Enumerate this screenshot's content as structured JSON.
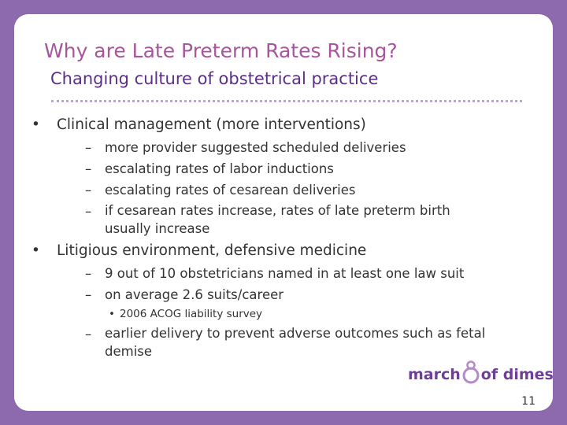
{
  "title": "Why are Late Preterm Rates Rising?",
  "subtitle": "Changing culture of obstetrical practice",
  "bullets": [
    {
      "text": "Clinical management (more interventions)",
      "items": [
        {
          "text": "more provider suggested scheduled deliveries"
        },
        {
          "text": "escalating rates of labor inductions"
        },
        {
          "text": "escalating rates of cesarean deliveries"
        },
        {
          "text": "if cesarean rates increase, rates of late preterm birth usually increase"
        }
      ]
    },
    {
      "text": "Litigious environment, defensive medicine",
      "items": [
        {
          "text": "9 out of 10 obstetricians named in at least one law suit"
        },
        {
          "text": "on average 2.6 suits/career",
          "items": [
            "2006 ACOG liability survey"
          ]
        },
        {
          "text": "earlier delivery to prevent adverse outcomes such as fetal demise"
        }
      ]
    }
  ],
  "logo": {
    "left": "march",
    "right": "of dimes"
  },
  "page_number": "11"
}
